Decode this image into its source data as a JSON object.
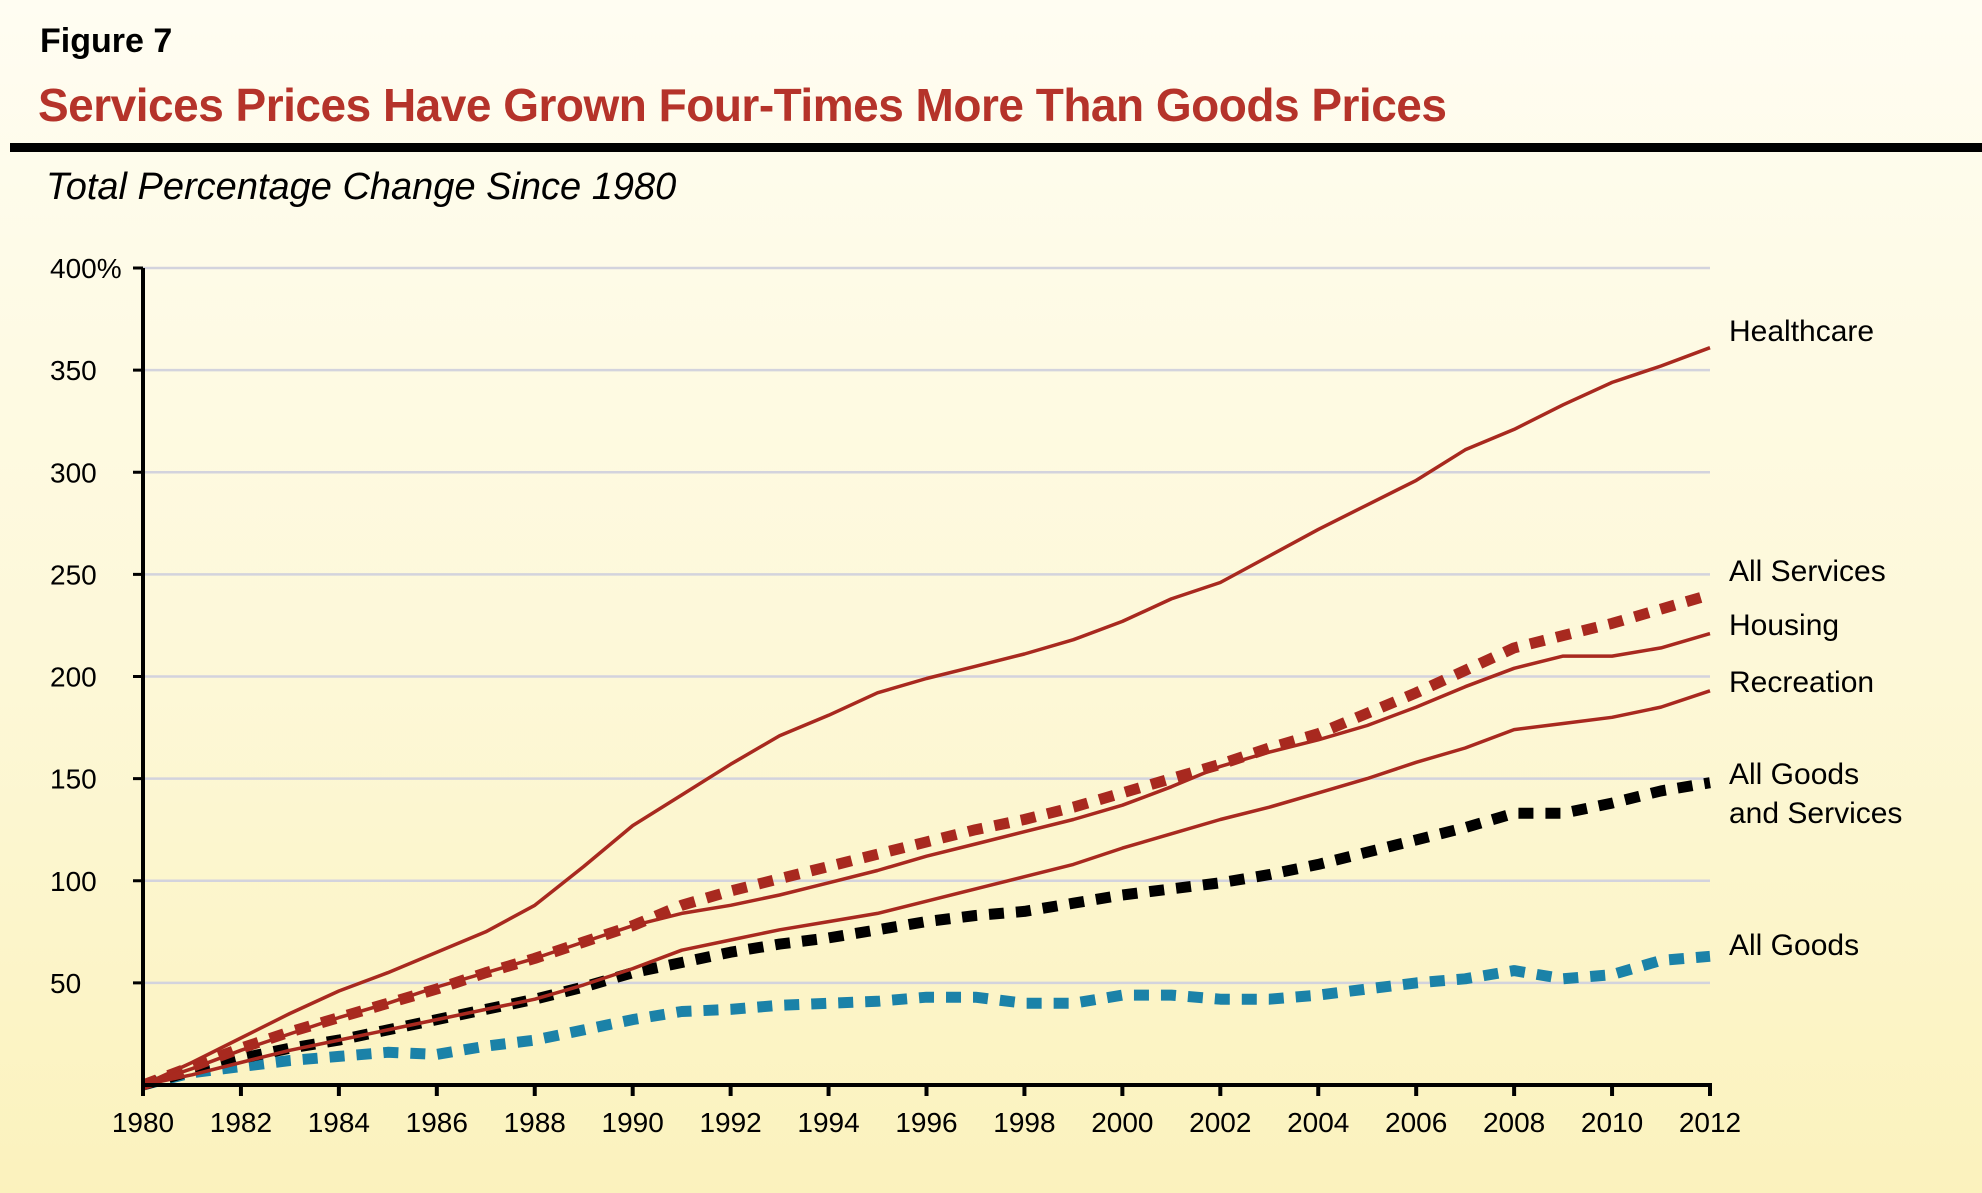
{
  "figure_label": "Figure 7",
  "title": "Services Prices Have Grown Four-Times More Than Goods Prices",
  "subtitle": "Total Percentage Change Since 1980",
  "chart_data": {
    "type": "line",
    "title": "Services Prices Have Grown Four-Times More Than Goods Prices",
    "ylabel": "Total Percentage Change Since 1980",
    "xlabel": "",
    "xlim": [
      1980,
      2012
    ],
    "ylim": [
      0,
      400
    ],
    "grid": true,
    "legend": "direct labels at right end of lines",
    "x_ticks": [
      "1980",
      "1982",
      "1984",
      "1986",
      "1988",
      "1990",
      "1992",
      "1994",
      "1996",
      "1998",
      "2000",
      "2002",
      "2004",
      "2006",
      "2008",
      "2010",
      "2012"
    ],
    "y_ticks": [
      "400%",
      "350",
      "300",
      "250",
      "200",
      "150",
      "100",
      "50"
    ],
    "x": [
      1980,
      1981,
      1982,
      1983,
      1984,
      1985,
      1986,
      1987,
      1988,
      1989,
      1990,
      1991,
      1992,
      1993,
      1994,
      1995,
      1996,
      1997,
      1998,
      1999,
      2000,
      2001,
      2002,
      2003,
      2004,
      2005,
      2006,
      2007,
      2008,
      2009,
      2010,
      2011,
      2012
    ],
    "series": [
      {
        "name": "Healthcare",
        "color": "#a8291f",
        "style": "solid",
        "values": [
          0,
          11,
          23,
          35,
          46,
          55,
          65,
          75,
          88,
          107,
          127,
          142,
          157,
          171,
          181,
          192,
          199,
          205,
          211,
          218,
          227,
          238,
          246,
          259,
          272,
          284,
          296,
          311,
          321,
          333,
          344,
          352,
          361
        ]
      },
      {
        "name": "All Services",
        "color": "#a8291f",
        "style": "dotted",
        "values": [
          0,
          9,
          18,
          26,
          33,
          40,
          47,
          55,
          62,
          70,
          78,
          88,
          95,
          101,
          107,
          113,
          119,
          125,
          130,
          136,
          143,
          150,
          157,
          165,
          172,
          182,
          192,
          203,
          214,
          220,
          226,
          233,
          240
        ]
      },
      {
        "name": "Housing",
        "color": "#a8291f",
        "style": "solid",
        "values": [
          0,
          8,
          17,
          25,
          33,
          40,
          48,
          55,
          62,
          70,
          78,
          84,
          88,
          93,
          99,
          105,
          112,
          118,
          124,
          130,
          137,
          146,
          156,
          163,
          169,
          176,
          185,
          195,
          204,
          210,
          210,
          214,
          221
        ]
      },
      {
        "name": "Recreation",
        "color": "#a8291f",
        "style": "solid",
        "values": [
          0,
          5,
          11,
          17,
          22,
          27,
          32,
          37,
          42,
          49,
          57,
          66,
          71,
          76,
          80,
          84,
          90,
          96,
          102,
          108,
          116,
          123,
          130,
          136,
          143,
          150,
          158,
          165,
          174,
          177,
          180,
          185,
          193
        ]
      },
      {
        "name": "All Goods and Services",
        "label_lines": [
          "All Goods",
          "and Services"
        ],
        "color": "#000000",
        "style": "dotted",
        "values": [
          0,
          7,
          13,
          18,
          22,
          27,
          32,
          37,
          42,
          48,
          55,
          60,
          65,
          69,
          72,
          76,
          80,
          83,
          85,
          89,
          93,
          96,
          99,
          103,
          108,
          114,
          120,
          126,
          133,
          133,
          138,
          144,
          148
        ]
      },
      {
        "name": "All Goods",
        "color": "#1b82a8",
        "style": "dotted",
        "values": [
          0,
          6,
          9,
          12,
          14,
          16,
          15,
          19,
          22,
          27,
          32,
          36,
          37,
          39,
          40,
          41,
          43,
          43,
          40,
          40,
          44,
          44,
          42,
          42,
          44,
          47,
          50,
          52,
          56,
          52,
          54,
          61,
          63
        ]
      }
    ]
  }
}
